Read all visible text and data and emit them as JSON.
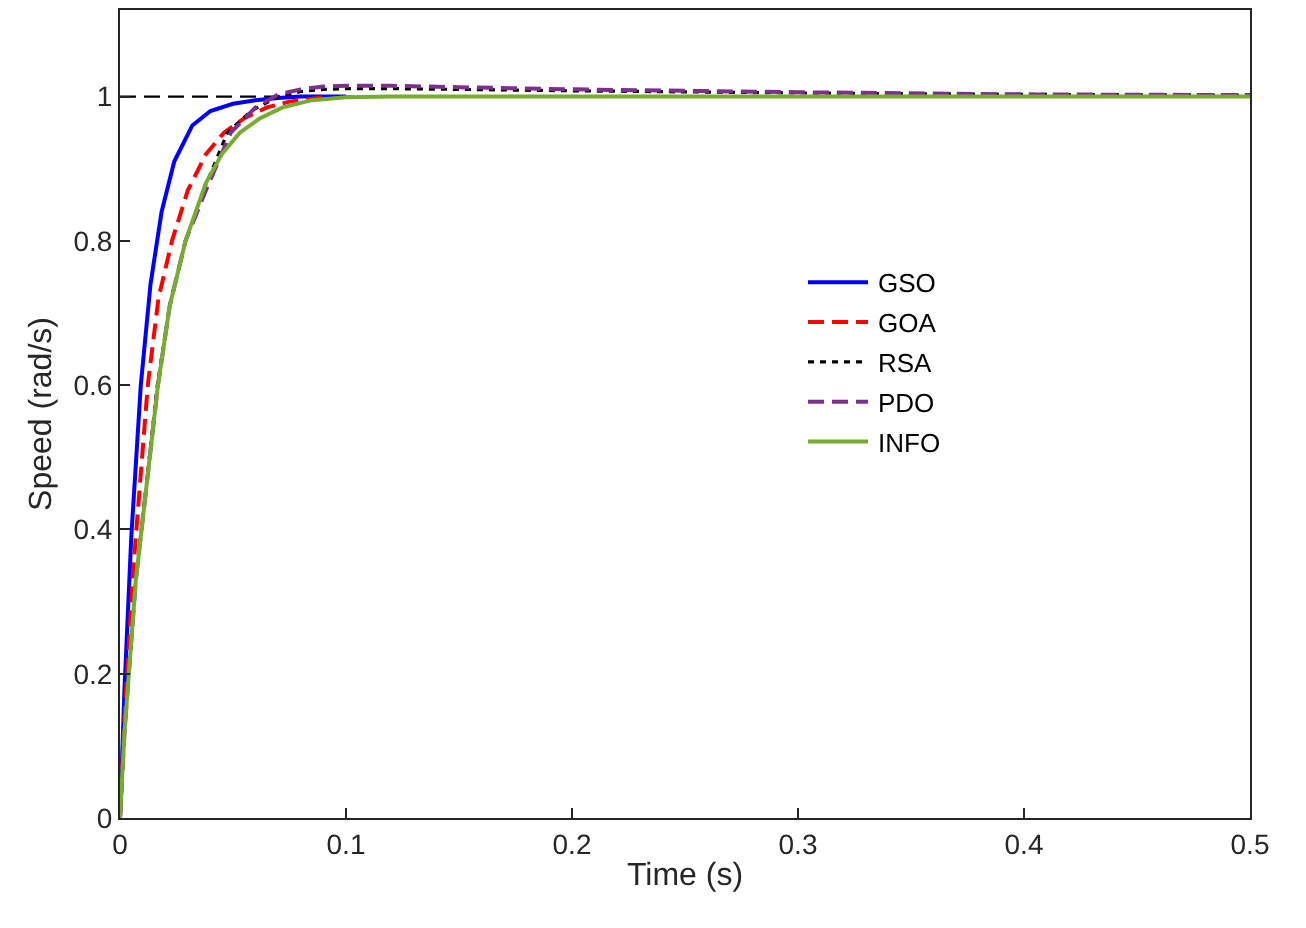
{
  "chart_data": {
    "type": "line",
    "xlabel": "Time (s)",
    "ylabel": "Speed (rad/s)",
    "xlim": [
      0,
      0.5
    ],
    "ylim": [
      0,
      1.12
    ],
    "xticks": [
      0,
      0.1,
      0.2,
      0.3,
      0.4,
      0.5
    ],
    "yticks": [
      0,
      0.2,
      0.4,
      0.6,
      0.8,
      1
    ],
    "grid": false,
    "legend": "right",
    "ref_lines": [
      {
        "axis": "y",
        "value": 1,
        "color": "#000000",
        "line_style": "dashed"
      }
    ],
    "series": [
      {
        "name": "GSO",
        "color": "#0000ff",
        "line_style": "solid",
        "x": [
          0,
          0.002,
          0.005,
          0.0092,
          0.0135,
          0.0184,
          0.024,
          0.032,
          0.04,
          0.05,
          0.06,
          0.07,
          0.08,
          0.1
        ],
        "values": [
          0,
          0.18,
          0.39,
          0.6,
          0.74,
          0.84,
          0.91,
          0.96,
          0.98,
          0.99,
          0.995,
          0.998,
          1.0,
          1.0
        ]
      },
      {
        "name": "GOA",
        "color": "#ff0000",
        "line_style": "dashed",
        "x": [
          0,
          0.002,
          0.006,
          0.0123,
          0.017,
          0.023,
          0.03,
          0.038,
          0.046,
          0.055,
          0.065,
          0.075,
          0.09
        ],
        "values": [
          0,
          0.14,
          0.35,
          0.6,
          0.72,
          0.8,
          0.87,
          0.92,
          0.95,
          0.97,
          0.985,
          0.993,
          0.999
        ]
      },
      {
        "name": "RSA",
        "color": "#000000",
        "line_style": "dotted",
        "x": [
          0,
          0.002,
          0.007,
          0.0165,
          0.022,
          0.029,
          0.037,
          0.0475,
          0.058,
          0.07,
          0.08,
          0.09,
          0.1,
          0.12,
          0.15,
          0.2,
          0.3,
          0.4,
          0.5
        ],
        "values": [
          0,
          0.12,
          0.33,
          0.6,
          0.71,
          0.8,
          0.87,
          0.95,
          0.98,
          1.0,
          1.007,
          1.01,
          1.011,
          1.011,
          1.01,
          1.008,
          1.005,
          1.003,
          1.002
        ]
      },
      {
        "name": "PDO",
        "color": "#7e2f8e",
        "line_style": "dashed",
        "x": [
          0,
          0.002,
          0.007,
          0.0168,
          0.022,
          0.029,
          0.038,
          0.049,
          0.06,
          0.07,
          0.08,
          0.09,
          0.1,
          0.12,
          0.15,
          0.2,
          0.3,
          0.4,
          0.5
        ],
        "values": [
          0,
          0.12,
          0.33,
          0.6,
          0.71,
          0.8,
          0.87,
          0.95,
          0.985,
          1.003,
          1.01,
          1.014,
          1.015,
          1.015,
          1.013,
          1.01,
          1.006,
          1.003,
          1.002
        ]
      },
      {
        "name": "INFO",
        "color": "#77ac30",
        "line_style": "solid",
        "x": [
          0,
          0.002,
          0.007,
          0.0168,
          0.022,
          0.029,
          0.038,
          0.045,
          0.053,
          0.062,
          0.072,
          0.085,
          0.1,
          0.12,
          0.15,
          0.2,
          0.3,
          0.4,
          0.5
        ],
        "values": [
          0,
          0.12,
          0.33,
          0.6,
          0.71,
          0.8,
          0.88,
          0.92,
          0.95,
          0.97,
          0.985,
          0.995,
          0.999,
          1.0,
          1.0,
          1.0,
          1.0,
          1.0,
          1.0
        ]
      }
    ]
  }
}
